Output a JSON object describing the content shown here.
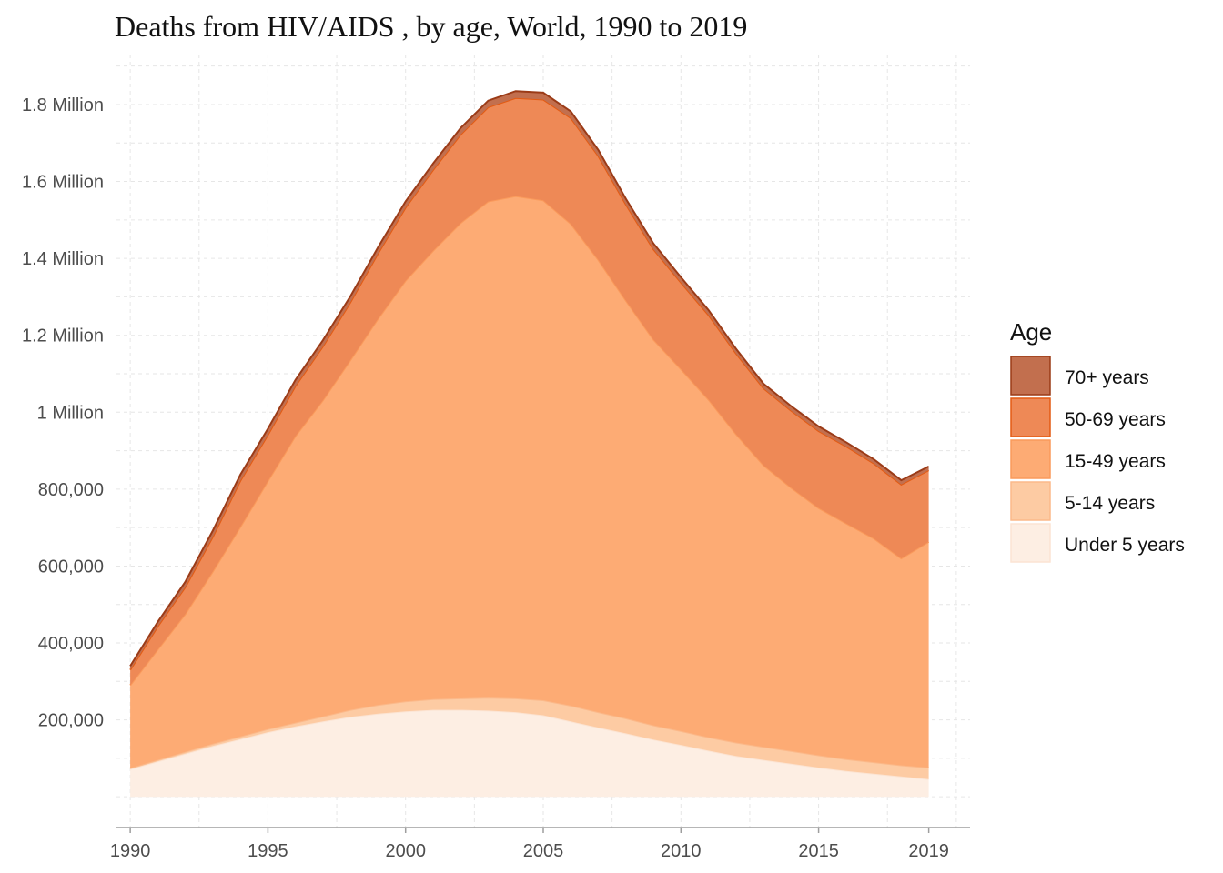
{
  "chart_data": {
    "type": "area",
    "stacked": true,
    "title": "Deaths from HIV/AIDS , by age, World, 1990 to 2019",
    "xlabel": "",
    "ylabel": "",
    "xlim": [
      1989.5,
      2020.5
    ],
    "ylim": [
      -80000,
      1930000
    ],
    "x_ticks": [
      1990,
      1995,
      2000,
      2005,
      2010,
      2015,
      2019
    ],
    "y_ticks": [
      {
        "value": 200000,
        "label": "200,000"
      },
      {
        "value": 400000,
        "label": "400,000"
      },
      {
        "value": 600000,
        "label": "600,000"
      },
      {
        "value": 800000,
        "label": "800,000"
      },
      {
        "value": 1000000,
        "label": "1 Million"
      },
      {
        "value": 1200000,
        "label": "1.2 Million"
      },
      {
        "value": 1400000,
        "label": "1.4 Million"
      },
      {
        "value": 1600000,
        "label": "1.6 Million"
      },
      {
        "value": 1800000,
        "label": "1.8 Million"
      }
    ],
    "grid": true,
    "legend_position": "right",
    "legend_title": "Age",
    "x": [
      1990,
      1991,
      1992,
      1993,
      1994,
      1995,
      1996,
      1997,
      1998,
      1999,
      2000,
      2001,
      2002,
      2003,
      2004,
      2005,
      2006,
      2007,
      2008,
      2009,
      2010,
      2011,
      2012,
      2013,
      2014,
      2015,
      2016,
      2017,
      2018,
      2019
    ],
    "series": [
      {
        "name": "Under 5 years",
        "color": "#fdeee3",
        "stroke": "#fce4d3",
        "values": [
          72000,
          92000,
          112000,
          132000,
          150000,
          168000,
          183000,
          196000,
          208000,
          216000,
          222000,
          226000,
          226000,
          224000,
          220000,
          212000,
          196000,
          180000,
          165000,
          149000,
          135000,
          120000,
          106000,
          96000,
          86000,
          76000,
          67000,
          60000,
          53000,
          46000
        ]
      },
      {
        "name": "5-14 years",
        "color": "#fdcba3",
        "stroke": "#fbb98a",
        "values": [
          3000,
          4000,
          5000,
          6000,
          7000,
          8000,
          10000,
          13000,
          18000,
          23000,
          26000,
          28000,
          30000,
          34000,
          36000,
          39000,
          41000,
          40000,
          39000,
          37000,
          36000,
          35000,
          35000,
          34000,
          33000,
          32000,
          31000,
          30000,
          29000,
          30000
        ]
      },
      {
        "name": "15-49 years",
        "color": "#fdab74",
        "stroke": "#fa9a5b",
        "values": [
          215000,
          287000,
          358000,
          448000,
          545000,
          645000,
          745000,
          822000,
          910000,
          1004000,
          1094000,
          1166000,
          1236000,
          1290000,
          1306000,
          1300000,
          1253000,
          1176000,
          1086000,
          1003000,
          941000,
          878000,
          802000,
          732000,
          685000,
          643000,
          613000,
          582000,
          538000,
          587000
        ]
      },
      {
        "name": "50-69 years",
        "color": "#ee8956",
        "stroke": "#e35b13",
        "values": [
          40000,
          60000,
          70000,
          90000,
          120000,
          120000,
          130000,
          140000,
          150000,
          170000,
          190000,
          210000,
          230000,
          245000,
          255000,
          262000,
          275000,
          270000,
          250000,
          235000,
          225000,
          220000,
          210000,
          200000,
          200000,
          200000,
          200000,
          195000,
          192000,
          186000
        ]
      },
      {
        "name": "70+ years",
        "color": "#c26f4e",
        "stroke": "#9b3b17",
        "values": [
          10000,
          12000,
          14000,
          16000,
          16000,
          16000,
          16000,
          16000,
          16000,
          16000,
          16000,
          17000,
          17000,
          17000,
          18000,
          18000,
          17000,
          16000,
          15000,
          15000,
          14000,
          13000,
          12000,
          12000,
          12000,
          12000,
          11000,
          11000,
          11000,
          10000
        ]
      }
    ]
  }
}
